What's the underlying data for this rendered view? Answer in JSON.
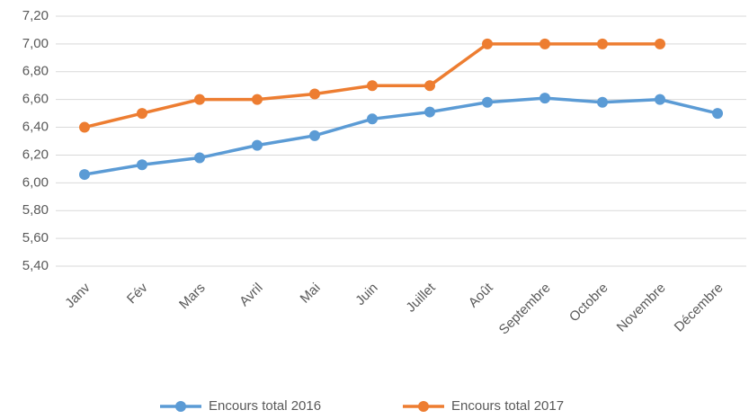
{
  "chart_data": {
    "type": "line",
    "categories": [
      "Janv",
      "Fév",
      "Mars",
      "Avril",
      "Mai",
      "Juin",
      "Juillet",
      "Août",
      "Septembre",
      "Octobre",
      "Novembre",
      "Décembre"
    ],
    "series": [
      {
        "name": "Encours total 2016",
        "color": "#5b9bd5",
        "values": [
          6.06,
          6.13,
          6.18,
          6.27,
          6.34,
          6.46,
          6.51,
          6.58,
          6.61,
          6.58,
          6.6,
          6.5
        ]
      },
      {
        "name": "Encours total 2017",
        "color": "#ed7d31",
        "values": [
          6.4,
          6.5,
          6.6,
          6.6,
          6.64,
          6.7,
          6.7,
          7.0,
          7.0,
          7.0,
          7.0,
          null
        ]
      }
    ],
    "ylim": [
      5.4,
      7.2
    ],
    "yticks": [
      {
        "value": 5.4,
        "label": "5,40"
      },
      {
        "value": 5.6,
        "label": "5,60"
      },
      {
        "value": 5.8,
        "label": "5,80"
      },
      {
        "value": 6.0,
        "label": "6,00"
      },
      {
        "value": 6.2,
        "label": "6,20"
      },
      {
        "value": 6.4,
        "label": "6,40"
      },
      {
        "value": 6.6,
        "label": "6,60"
      },
      {
        "value": 6.8,
        "label": "6,80"
      },
      {
        "value": 7.0,
        "label": "7,00"
      },
      {
        "value": 7.2,
        "label": "7,20"
      }
    ],
    "grid": true,
    "legend": "bottom"
  }
}
